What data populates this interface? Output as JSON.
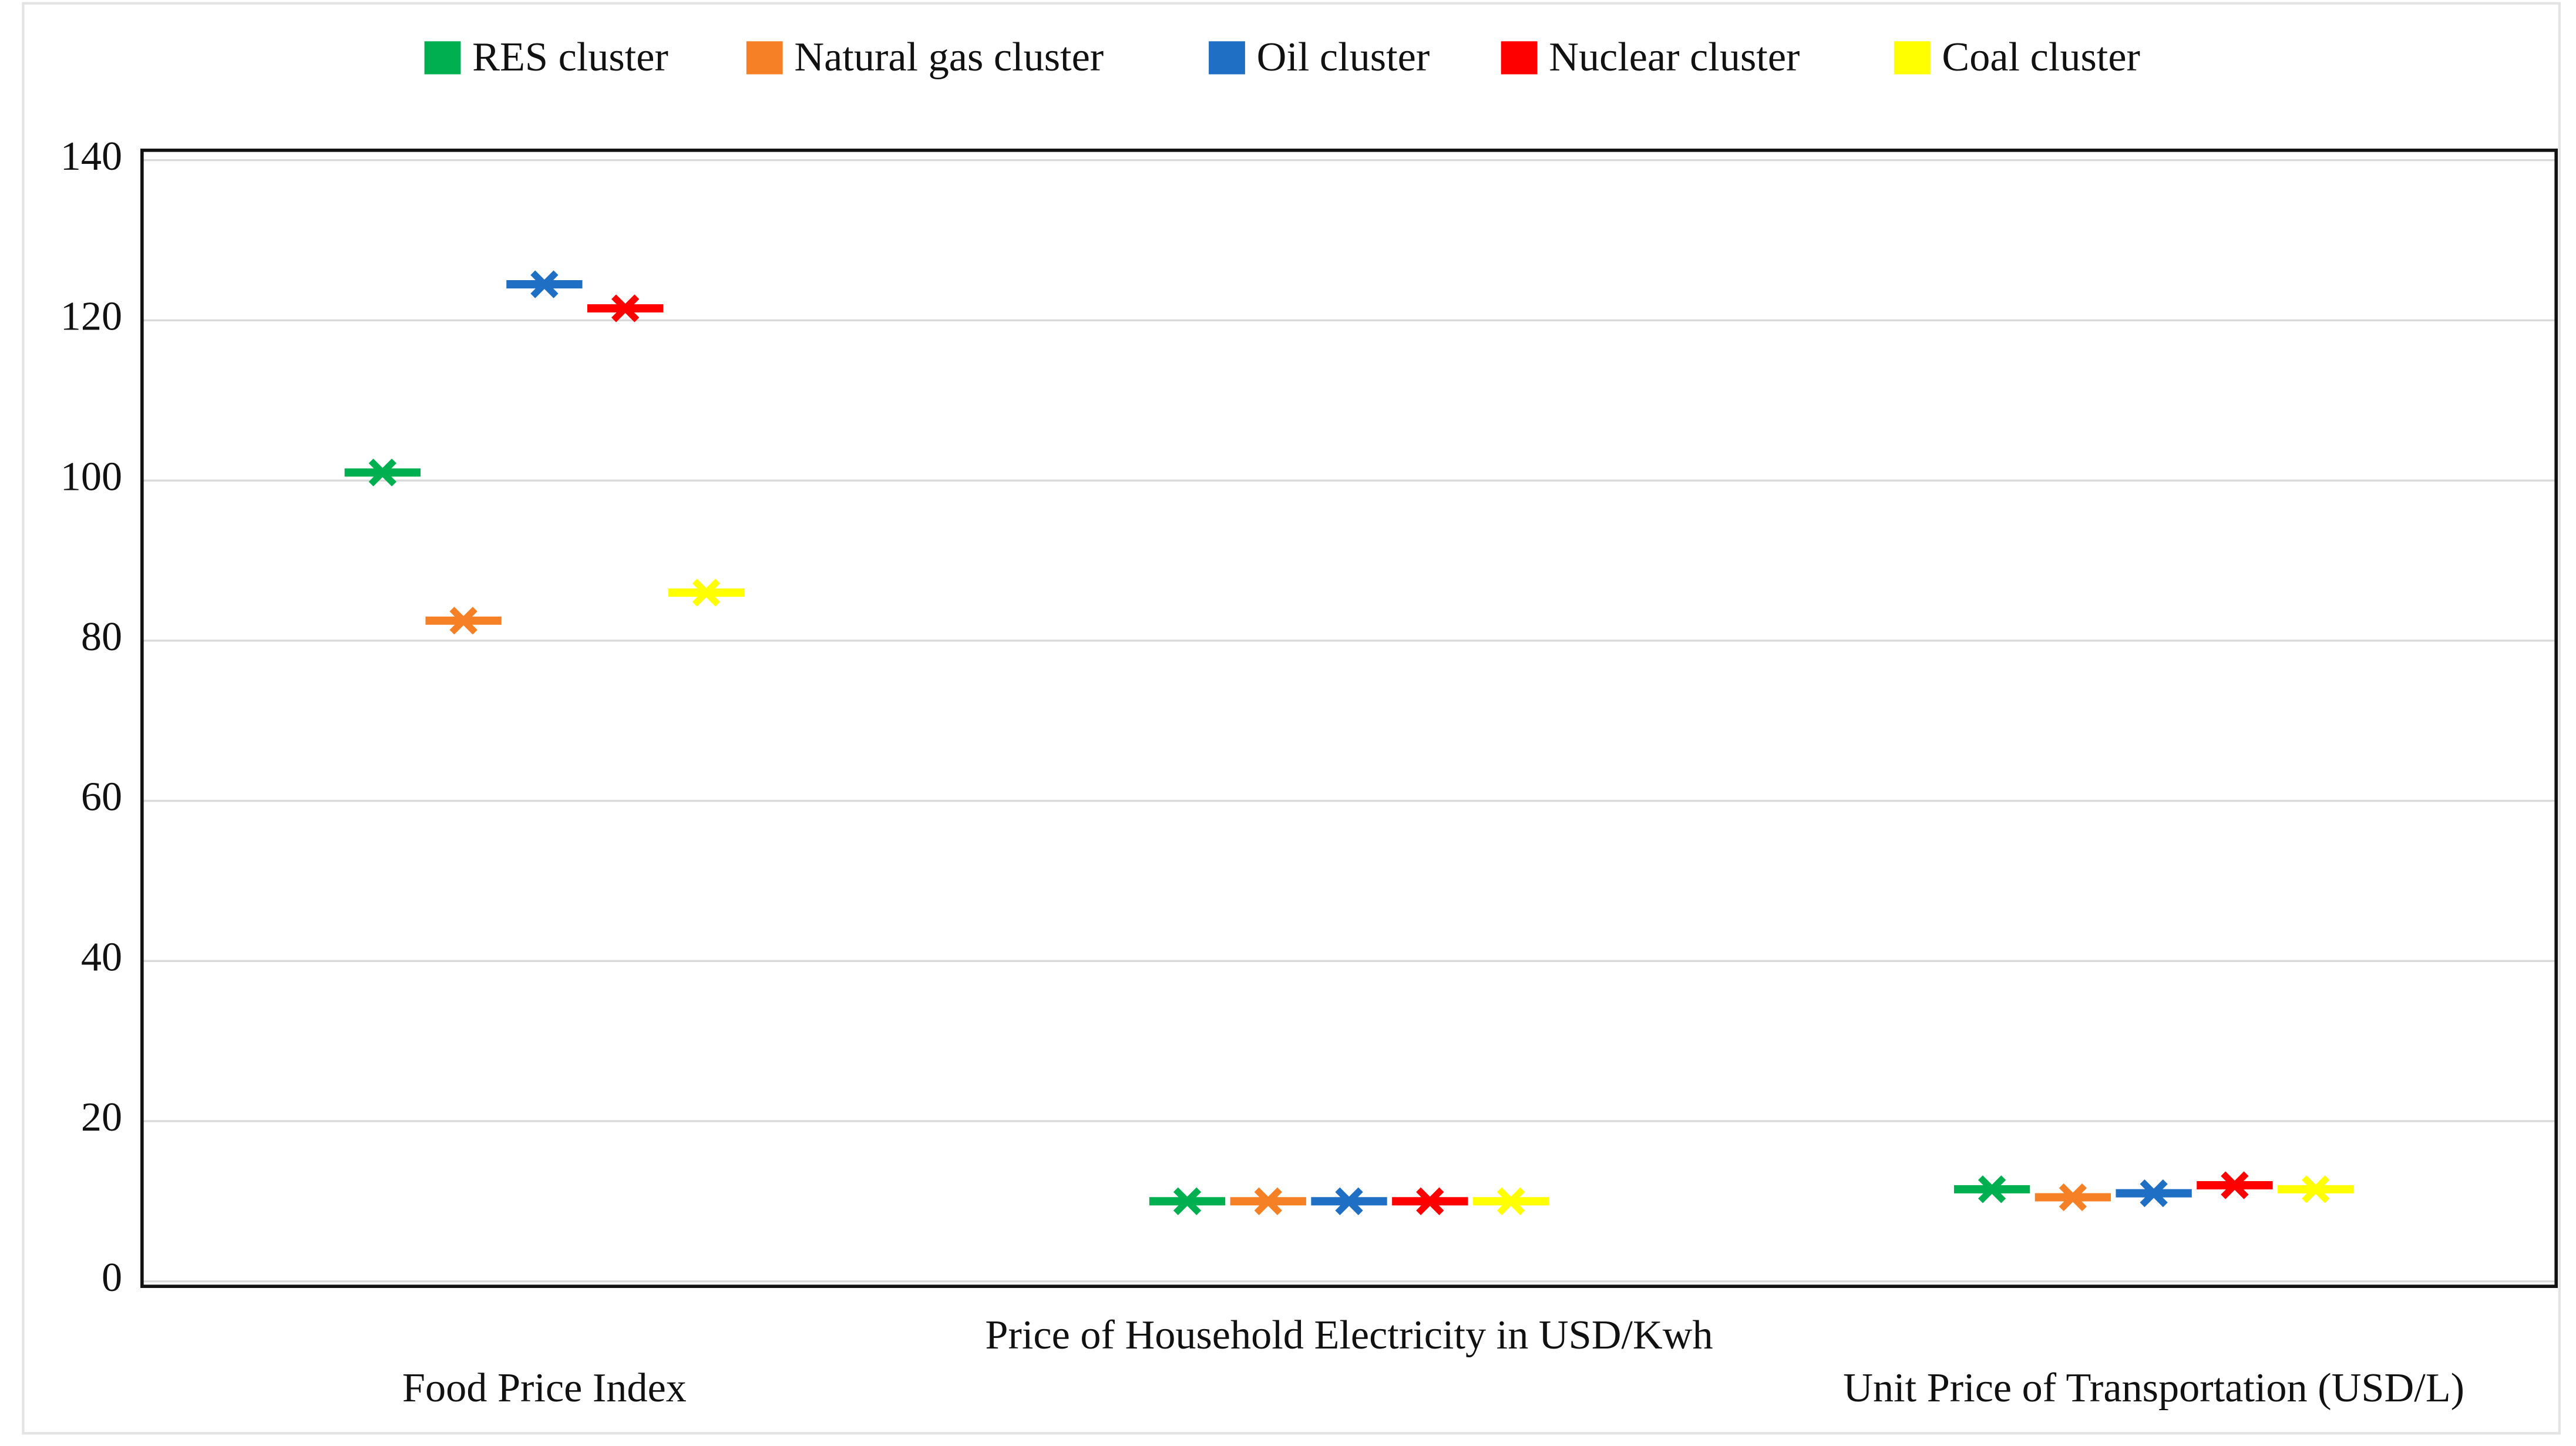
{
  "chart_data": {
    "type": "dot",
    "categories": [
      "Food Price Index",
      "Price of Household Electricity in USD/Kwh",
      "Unit Price of Transportation (USD/L)"
    ],
    "series": [
      {
        "name": "RES cluster",
        "color": "#00b050",
        "values": [
          101,
          10,
          11.5
        ]
      },
      {
        "name": "Natural gas cluster",
        "color": "#f58025",
        "values": [
          82.5,
          10,
          10.5
        ]
      },
      {
        "name": "Oil cluster",
        "color": "#1f6fc5",
        "values": [
          124.5,
          10,
          11
        ]
      },
      {
        "name": "Nuclear cluster",
        "color": "#ff0000",
        "values": [
          121.5,
          10,
          12
        ]
      },
      {
        "name": "Coal cluster",
        "color": "#ffff00",
        "values": [
          86,
          10,
          11.5
        ]
      }
    ],
    "ylim": [
      0,
      140
    ],
    "yticks": [
      0,
      20,
      40,
      60,
      80,
      100,
      120,
      140
    ],
    "grid": true,
    "legend": "top"
  }
}
